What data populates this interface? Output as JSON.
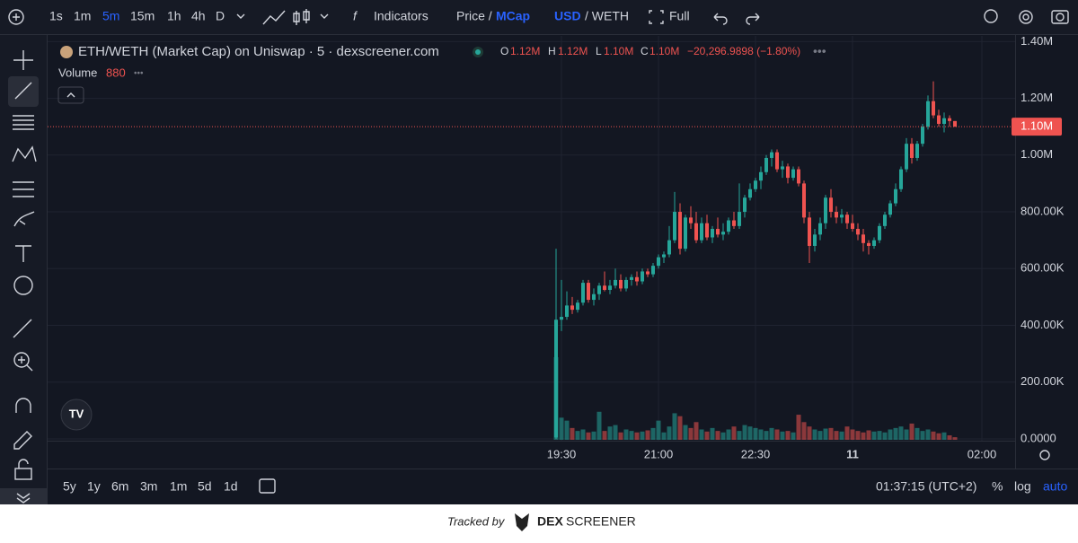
{
  "toolbar": {
    "intervals": [
      "1s",
      "1m",
      "5m",
      "15m",
      "1h",
      "4h",
      "D"
    ],
    "indicators": "Indicators",
    "price": "Price /",
    "mcap": "MCap",
    "usd": "USD",
    "weth": "/ WETH",
    "full": "Full"
  },
  "legend": {
    "title": "ETH/WETH (Market Cap) on Uniswap · 5 · dexscreener.com",
    "o_label": "O",
    "o": "1.12M",
    "h_label": "H",
    "h": "1.12M",
    "l_label": "L",
    "l": "1.10M",
    "c_label": "C",
    "c": "1.10M",
    "change": "−20,296.9898 (−1.80%)",
    "volume_label": "Volume",
    "volume": "880"
  },
  "chart_data": {
    "type": "candlestick",
    "open": [
      5000,
      420000,
      430000,
      470000,
      455000,
      480000,
      550000,
      490000,
      510000,
      540000,
      525000,
      540000,
      560000,
      530000,
      560000,
      570000,
      555000,
      590000,
      580000,
      610000,
      640000,
      650000,
      700000,
      800000,
      670000,
      780000,
      760000,
      700000,
      760000,
      710000,
      740000,
      720000,
      730000,
      770000,
      750000,
      800000,
      850000,
      880000,
      910000,
      940000,
      990000,
      1010000,
      950000,
      960000,
      920000,
      950000,
      900000,
      780000,
      680000,
      720000,
      760000,
      850000,
      800000,
      780000,
      790000,
      760000,
      740000,
      720000,
      690000,
      680000,
      700000,
      750000,
      790000,
      830000,
      880000,
      950000,
      1040000,
      990000,
      1040000,
      1100000,
      1190000,
      1140000,
      1110000,
      1130000,
      1120000
    ],
    "high": [
      670000,
      560000,
      520000,
      500000,
      490000,
      560000,
      560000,
      530000,
      550000,
      590000,
      560000,
      600000,
      580000,
      570000,
      580000,
      590000,
      600000,
      600000,
      620000,
      650000,
      660000,
      750000,
      870000,
      830000,
      790000,
      820000,
      800000,
      780000,
      790000,
      750000,
      780000,
      760000,
      780000,
      800000,
      900000,
      860000,
      900000,
      920000,
      960000,
      1000000,
      1020000,
      1020000,
      980000,
      970000,
      960000,
      960000,
      910000,
      800000,
      740000,
      780000,
      860000,
      880000,
      820000,
      810000,
      800000,
      790000,
      760000,
      740000,
      700000,
      710000,
      760000,
      800000,
      840000,
      900000,
      960000,
      1060000,
      1060000,
      1050000,
      1110000,
      1210000,
      1260000,
      1160000,
      1150000,
      1140000,
      1120000
    ],
    "low": [
      0,
      380000,
      420000,
      440000,
      445000,
      470000,
      480000,
      470000,
      490000,
      520000,
      510000,
      530000,
      520000,
      520000,
      540000,
      540000,
      545000,
      570000,
      570000,
      600000,
      620000,
      640000,
      690000,
      650000,
      660000,
      740000,
      690000,
      690000,
      700000,
      690000,
      710000,
      700000,
      720000,
      740000,
      740000,
      780000,
      840000,
      870000,
      880000,
      930000,
      960000,
      940000,
      920000,
      900000,
      910000,
      890000,
      760000,
      620000,
      660000,
      700000,
      740000,
      780000,
      760000,
      760000,
      740000,
      730000,
      700000,
      660000,
      650000,
      670000,
      690000,
      740000,
      780000,
      820000,
      870000,
      940000,
      970000,
      980000,
      1030000,
      1090000,
      1130000,
      1100000,
      1080000,
      1100000,
      1100000
    ],
    "close": [
      420000,
      430000,
      470000,
      455000,
      480000,
      550000,
      490000,
      510000,
      540000,
      525000,
      540000,
      560000,
      530000,
      560000,
      570000,
      555000,
      590000,
      580000,
      610000,
      640000,
      650000,
      700000,
      800000,
      670000,
      780000,
      760000,
      700000,
      760000,
      710000,
      740000,
      720000,
      730000,
      770000,
      750000,
      800000,
      850000,
      880000,
      910000,
      940000,
      990000,
      1010000,
      950000,
      960000,
      920000,
      950000,
      900000,
      780000,
      680000,
      720000,
      760000,
      850000,
      800000,
      780000,
      790000,
      760000,
      740000,
      720000,
      690000,
      680000,
      700000,
      750000,
      790000,
      830000,
      880000,
      950000,
      1040000,
      990000,
      1040000,
      1100000,
      1190000,
      1140000,
      1110000,
      1130000,
      1120000,
      1100000
    ],
    "volume": [
      28000,
      7500,
      6500,
      4000,
      3000,
      3500,
      2500,
      2800,
      9500,
      3000,
      4500,
      5000,
      2500,
      3500,
      3000,
      2500,
      2800,
      3200,
      4000,
      6500,
      2500,
      4500,
      9000,
      8000,
      5000,
      4000,
      6000,
      3500,
      2800,
      4000,
      3000,
      2500,
      3500,
      4500,
      3000,
      5000,
      4500,
      4000,
      3500,
      3000,
      4000,
      3500,
      2800,
      3000,
      2500,
      8500,
      6000,
      4500,
      3500,
      3000,
      3800,
      4000,
      3000,
      2800,
      4500,
      3500,
      3000,
      2500,
      3200,
      2800,
      3000,
      2500,
      3500,
      4000,
      4500,
      3500,
      5500,
      4000,
      3000,
      3500,
      2800,
      2200,
      2500,
      1500,
      880
    ],
    "up_color": "#26a69a",
    "down_color": "#ef5350",
    "ylim": [
      0,
      1420000
    ],
    "yticks": [
      {
        "value": 0,
        "label": "0.0000"
      },
      {
        "value": 200000,
        "label": "200.00K"
      },
      {
        "value": 400000,
        "label": "400.00K"
      },
      {
        "value": 600000,
        "label": "600.00K"
      },
      {
        "value": 800000,
        "label": "800.00K"
      },
      {
        "value": 1000000,
        "label": "1.00M"
      },
      {
        "value": 1200000,
        "label": "1.20M"
      },
      {
        "value": 1400000,
        "label": "1.40M"
      }
    ],
    "last_price": {
      "value": 1100000,
      "label": "1.10M"
    },
    "time_labels": [
      "19:30",
      "21:00",
      "22:30",
      "11",
      "02:00"
    ],
    "grid": true
  },
  "bottom_bar": {
    "ranges": [
      "5y",
      "1y",
      "6m",
      "3m",
      "1m",
      "5d",
      "1d"
    ],
    "clock": "01:37:15 (UTC+2)",
    "percent": "%",
    "log": "log",
    "auto": "auto"
  },
  "footer": {
    "tracked": "Tracked by",
    "dex": "DEX",
    "screener": "SCREENER"
  }
}
